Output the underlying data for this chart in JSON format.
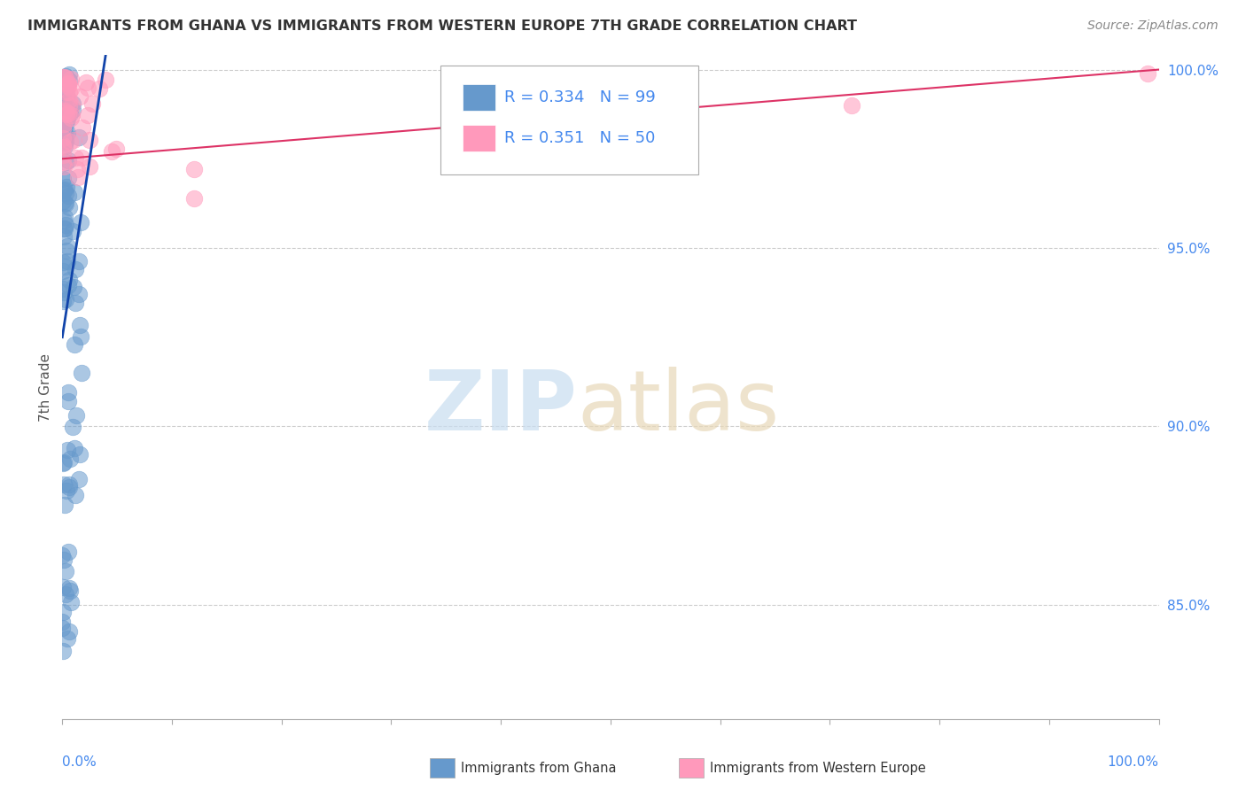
{
  "title": "IMMIGRANTS FROM GHANA VS IMMIGRANTS FROM WESTERN EUROPE 7TH GRADE CORRELATION CHART",
  "source": "Source: ZipAtlas.com",
  "ylabel": "7th Grade",
  "legend_blue_label": "Immigrants from Ghana",
  "legend_pink_label": "Immigrants from Western Europe",
  "R_blue": 0.334,
  "N_blue": 99,
  "R_pink": 0.351,
  "N_pink": 50,
  "blue_color": "#6699cc",
  "pink_color": "#ff99bb",
  "blue_line_color": "#1144aa",
  "pink_line_color": "#dd3366",
  "background_color": "#ffffff",
  "xlim": [
    0.0,
    1.0
  ],
  "ylim": [
    0.818,
    1.004
  ],
  "ytick_values": [
    0.85,
    0.9,
    0.95,
    1.0
  ],
  "ytick_labels": [
    "85.0%",
    "90.0%",
    "95.0%",
    "100.0%"
  ],
  "grid_color": "#cccccc",
  "axis_color": "#aaaaaa",
  "label_color": "#4488ee",
  "title_color": "#333333",
  "source_color": "#888888",
  "watermark_zip_color": "#c8ddf0",
  "watermark_atlas_color": "#e8d8b8"
}
